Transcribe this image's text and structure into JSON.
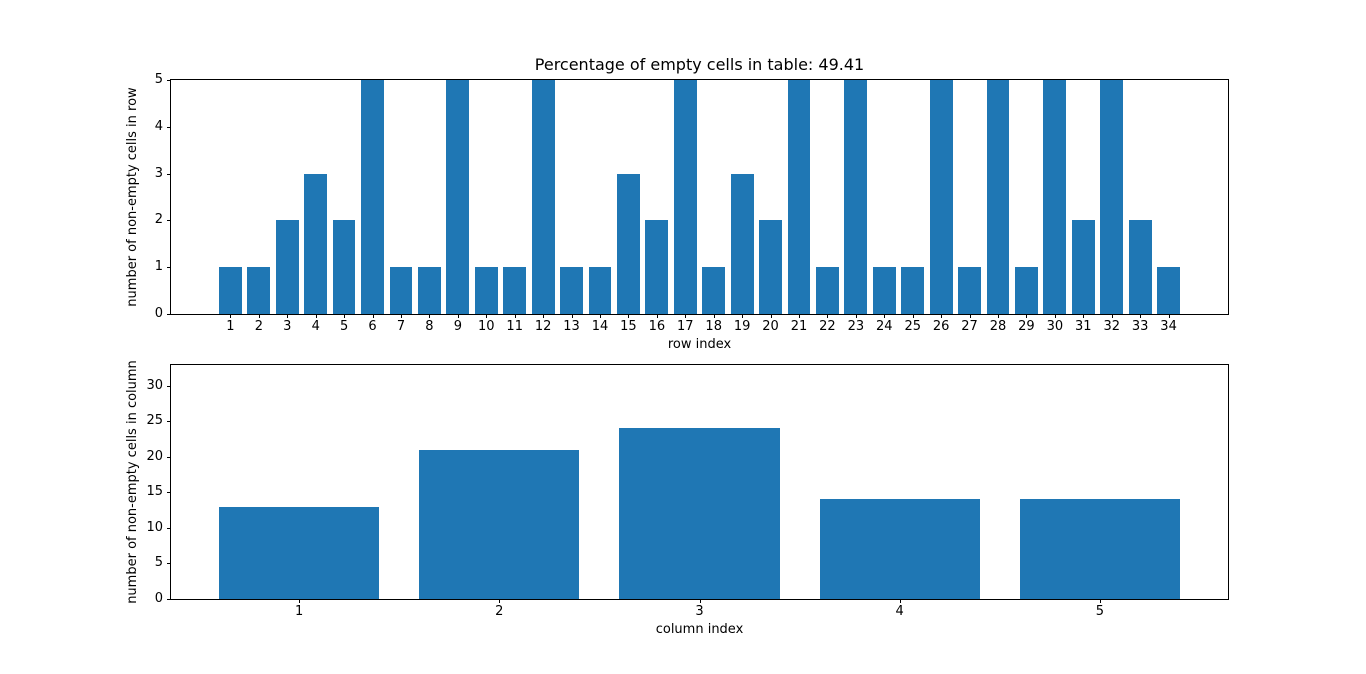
{
  "figure": {
    "background": "#ffffff",
    "bar_color": "#1f77b4"
  },
  "chart_data": [
    {
      "type": "bar",
      "title": "Percentage of empty cells in table: 49.41",
      "xlabel": "row index",
      "ylabel": "number of non-empty cells in row",
      "categories": [
        "1",
        "2",
        "3",
        "4",
        "5",
        "6",
        "7",
        "8",
        "9",
        "10",
        "11",
        "12",
        "13",
        "14",
        "15",
        "16",
        "17",
        "18",
        "19",
        "20",
        "21",
        "22",
        "23",
        "24",
        "25",
        "26",
        "27",
        "28",
        "29",
        "30",
        "31",
        "32",
        "33",
        "34"
      ],
      "values": [
        1,
        1,
        2,
        3,
        2,
        5,
        1,
        1,
        5,
        1,
        1,
        5,
        1,
        1,
        3,
        2,
        5,
        1,
        3,
        2,
        5,
        1,
        5,
        1,
        1,
        5,
        1,
        5,
        1,
        5,
        2,
        5,
        2,
        1
      ],
      "yticks": [
        0,
        1,
        2,
        3,
        4,
        5
      ],
      "ylim": [
        0,
        5
      ],
      "xlim": [
        -1.09,
        36.09
      ],
      "bar_width": 0.8,
      "bar_color": "#1f77b4",
      "grid": false,
      "legend": "none"
    },
    {
      "type": "bar",
      "title": "",
      "xlabel": "column index",
      "ylabel": "number of non-empty cells in column",
      "categories": [
        "1",
        "2",
        "3",
        "4",
        "5"
      ],
      "values": [
        13,
        21,
        24,
        14,
        14
      ],
      "yticks": [
        0,
        5,
        10,
        15,
        20,
        25,
        30
      ],
      "ylim": [
        0,
        32.9
      ],
      "xlim": [
        0.36,
        5.64
      ],
      "bar_width": 0.8,
      "bar_color": "#1f77b4",
      "grid": false,
      "legend": "none"
    }
  ]
}
